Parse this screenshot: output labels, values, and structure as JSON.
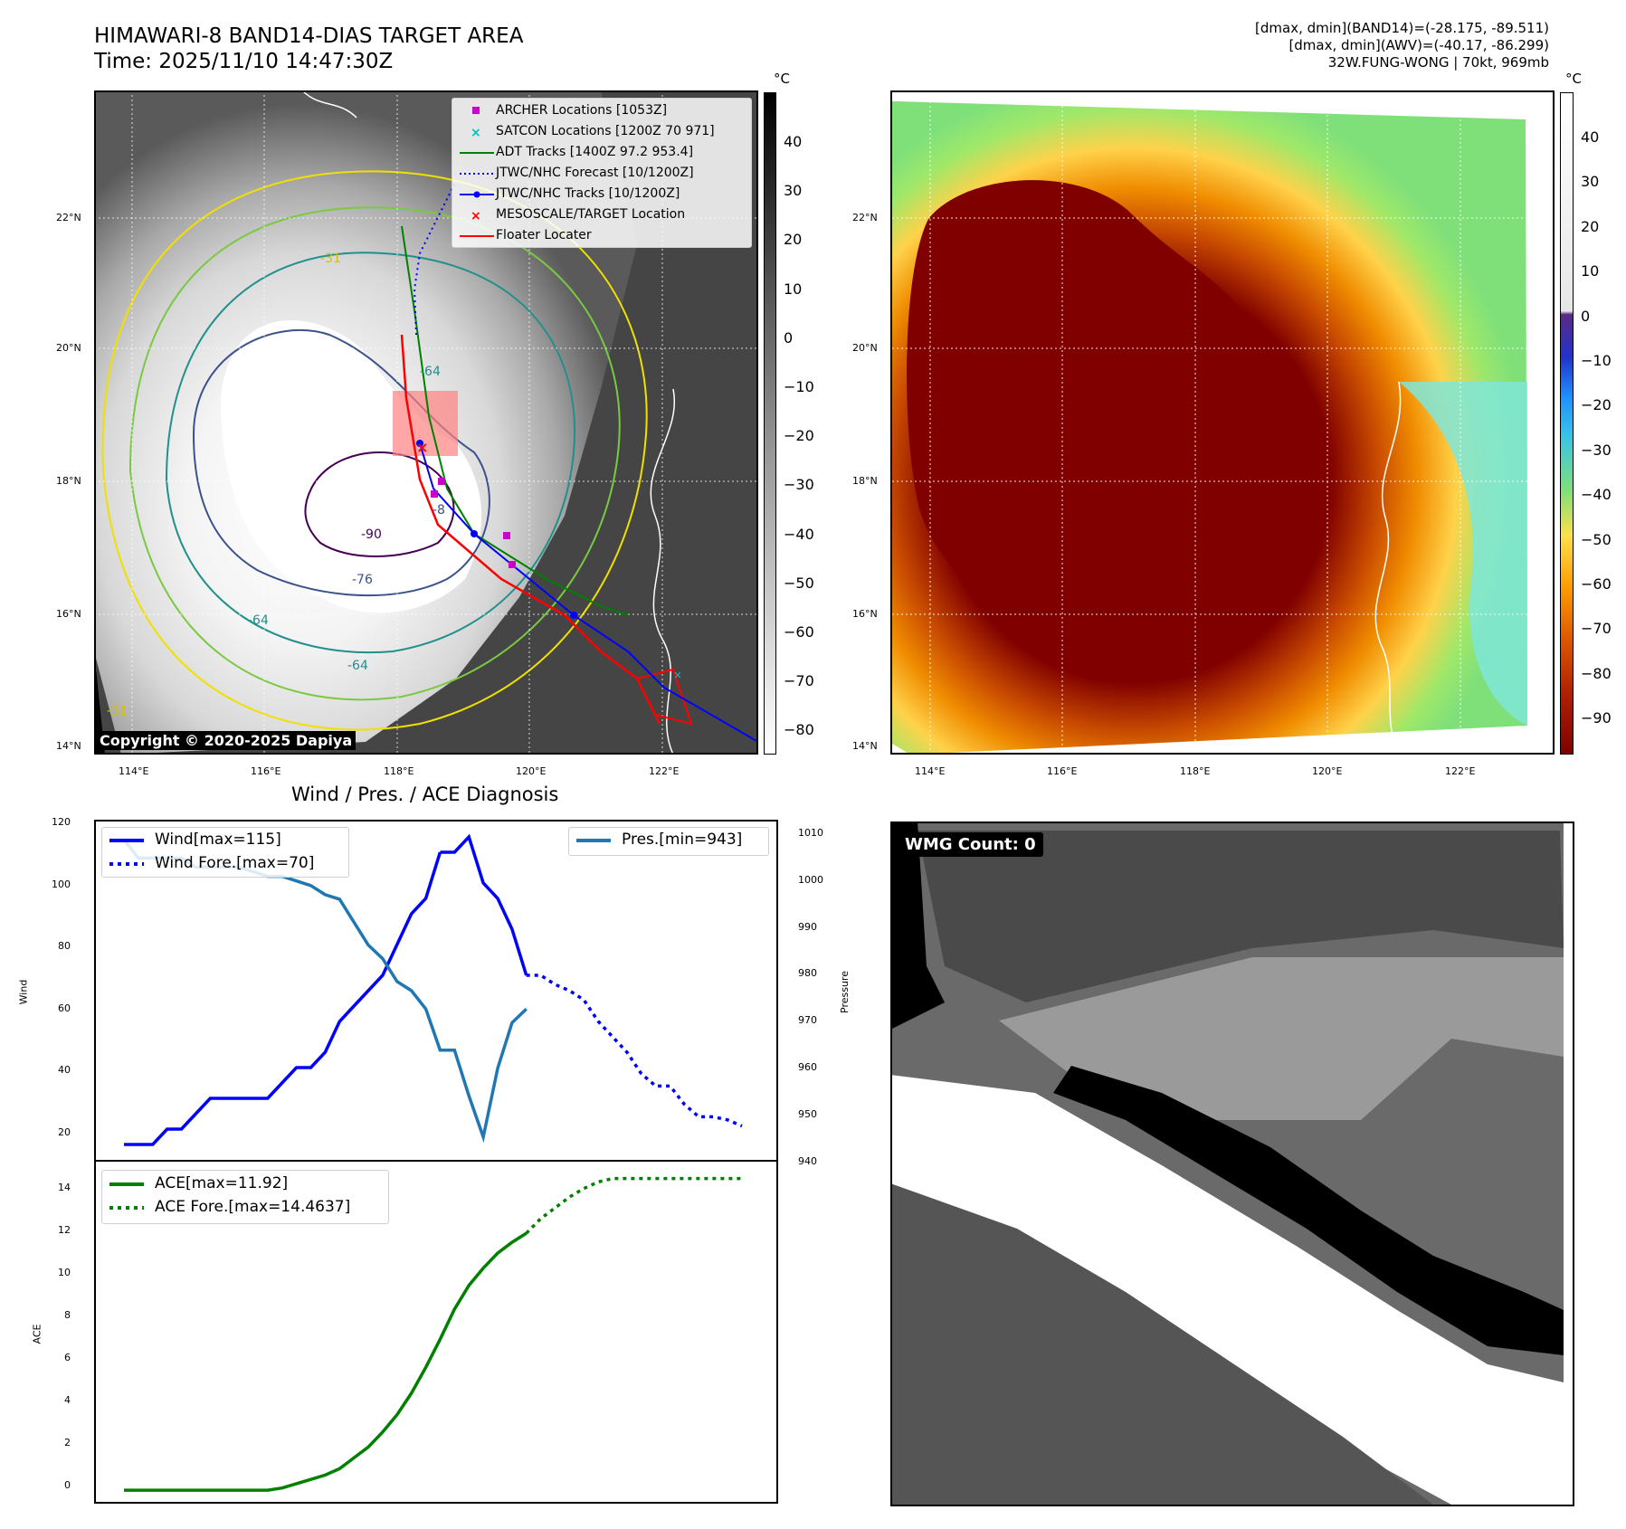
{
  "title": {
    "line1": "HIMAWARI-8 BAND14-DIAS TARGET AREA",
    "line2": "Time: 2025/11/10 14:47:30Z"
  },
  "info": {
    "line1": "[dmax, dmin](BAND14)=(-28.175, -89.511)",
    "line2": "[dmax, dmin](AWV)=(-40.17, -86.299)",
    "line3": "32W.FUNG-WONG | 70kt, 969mb"
  },
  "map": {
    "lat_ticks": [
      "22°N",
      "20°N",
      "18°N",
      "16°N",
      "14°N"
    ],
    "lon_ticks": [
      "114°E",
      "116°E",
      "118°E",
      "120°E",
      "122°E"
    ],
    "contour_labels": [
      "-90",
      "-76",
      "-64",
      "-64",
      "-31",
      "-31",
      "-64",
      "-8"
    ],
    "copyright": "Copyright © 2020-2025 Dapiya"
  },
  "legend_map": [
    {
      "label": "ARCHER Locations [1053Z]",
      "color": "#cc00cc",
      "marker": "square"
    },
    {
      "label": "SATCON Locations [1200Z 70 971]",
      "color": "#00bfbf",
      "marker": "x"
    },
    {
      "label": "ADT Tracks [1400Z 97.2 953.4]",
      "color": "#008000",
      "marker": "line"
    },
    {
      "label": "JTWC/NHC Forecast [10/1200Z]",
      "color": "#0000ff",
      "marker": "dotted"
    },
    {
      "label": "JTWC/NHC Tracks [10/1200Z]",
      "color": "#0000ff",
      "marker": "line-dot"
    },
    {
      "label": "MESOSCALE/TARGET Location",
      "color": "#ff0000",
      "marker": "x"
    },
    {
      "label": "Floater Locater",
      "color": "#ff0000",
      "marker": "line"
    }
  ],
  "colorbar_left": {
    "unit": "°C",
    "ticks": [
      "40",
      "30",
      "20",
      "10",
      "0",
      "−10",
      "−20",
      "−30",
      "−40",
      "−50",
      "−60",
      "−70",
      "−80"
    ]
  },
  "colorbar_right": {
    "unit": "°C",
    "ticks": [
      "40",
      "30",
      "20",
      "10",
      "0",
      "−10",
      "−20",
      "−30",
      "−40",
      "−50",
      "−60",
      "−70",
      "−80",
      "−90"
    ]
  },
  "diag": {
    "title": "Wind / Pres. / ACE Diagnosis",
    "wind_ylabel": "Wind",
    "pres_ylabel": "Pressure",
    "ace_ylabel": "ACE",
    "wind_ticks": [
      "120",
      "100",
      "80",
      "60",
      "40",
      "20"
    ],
    "pres_ticks": [
      "1010",
      "1000",
      "990",
      "980",
      "970",
      "960",
      "950",
      "940"
    ],
    "ace_ticks": [
      "14",
      "12",
      "10",
      "8",
      "6",
      "4",
      "2",
      "0"
    ]
  },
  "legend_wind": [
    {
      "label": "Wind[max=115]",
      "color": "#0000ff",
      "style": "solid"
    },
    {
      "label": "Wind Fore.[max=70]",
      "color": "#0000ff",
      "style": "dotted"
    }
  ],
  "legend_pres": [
    {
      "label": "Pres.[min=943]",
      "color": "#1f77b4",
      "style": "solid"
    }
  ],
  "legend_ace": [
    {
      "label": "ACE[max=11.92]",
      "color": "#008000",
      "style": "solid"
    },
    {
      "label": "ACE Fore.[max=14.4637]",
      "color": "#008000",
      "style": "dotted"
    }
  ],
  "wmg": {
    "label": "WMG Count: 0"
  },
  "chart_data": [
    {
      "type": "line",
      "title": "Wind / Pres. / ACE Diagnosis",
      "ylabel": "Wind",
      "ylim": [
        10,
        120
      ],
      "series": [
        {
          "name": "Wind[max=115]",
          "style": "solid",
          "color": "#0000ff",
          "x": [
            0,
            1,
            2,
            3,
            4,
            5,
            6,
            7,
            8,
            9,
            10,
            11,
            12,
            13,
            14,
            15,
            16,
            17,
            18,
            19,
            20,
            21,
            22
          ],
          "values": [
            15,
            15,
            15,
            20,
            20,
            25,
            30,
            30,
            30,
            30,
            30,
            35,
            40,
            40,
            45,
            55,
            60,
            65,
            70,
            80,
            90,
            95,
            110
          ]
        },
        {
          "name": "Wind[max=115]",
          "style": "solid",
          "color": "#0000ff",
          "x": [
            22,
            23,
            24,
            25,
            26,
            27,
            28
          ],
          "values": [
            110,
            110,
            115,
            100,
            95,
            85,
            70
          ]
        },
        {
          "name": "Wind Fore.[max=70]",
          "style": "dotted",
          "color": "#0000ff",
          "x": [
            28,
            29,
            30,
            31,
            32,
            33,
            34,
            35,
            36,
            37,
            38,
            39,
            40,
            41,
            42,
            43
          ],
          "values": [
            70,
            70,
            67,
            65,
            62,
            55,
            50,
            45,
            38,
            34,
            34,
            28,
            24,
            24,
            23,
            21
          ]
        }
      ]
    },
    {
      "type": "line",
      "ylabel": "Pressure",
      "ylim": [
        938,
        1012
      ],
      "series": [
        {
          "name": "Pres.[min=943]",
          "style": "solid",
          "color": "#1f77b4",
          "x": [
            0,
            1,
            2,
            3,
            4,
            5,
            6,
            7,
            8,
            9,
            10,
            11,
            12,
            13,
            14,
            15,
            16,
            17,
            18,
            19,
            20,
            21,
            22,
            23,
            24,
            25,
            26,
            27,
            28
          ],
          "values": [
            1008,
            1004,
            1004,
            1004,
            1004,
            1002,
            1002,
            1002,
            1002,
            1001,
            1000,
            1000,
            999,
            998,
            996,
            995,
            990,
            985,
            982,
            977,
            975,
            971,
            962,
            962,
            952,
            943,
            958,
            968,
            971
          ]
        }
      ]
    },
    {
      "type": "line",
      "ylabel": "ACE",
      "ylim": [
        -0.5,
        15.2
      ],
      "series": [
        {
          "name": "ACE[max=11.92]",
          "style": "solid",
          "color": "#008000",
          "x": [
            0,
            1,
            2,
            3,
            4,
            5,
            6,
            7,
            8,
            9,
            10,
            11,
            12,
            13,
            14,
            15,
            16,
            17,
            18,
            19,
            20,
            21,
            22,
            23,
            24,
            25,
            26,
            27,
            28
          ],
          "values": [
            0,
            0,
            0,
            0,
            0,
            0,
            0,
            0,
            0,
            0,
            0,
            0.1,
            0.3,
            0.5,
            0.7,
            1.0,
            1.5,
            2.0,
            2.7,
            3.5,
            4.5,
            5.7,
            7.0,
            8.4,
            9.5,
            10.3,
            11.0,
            11.5,
            11.92
          ]
        },
        {
          "name": "ACE Fore.[max=14.4637]",
          "style": "dotted",
          "color": "#008000",
          "x": [
            28,
            29,
            30,
            31,
            32,
            33,
            34,
            35,
            36,
            37,
            38,
            39,
            40,
            41,
            42,
            43
          ],
          "values": [
            11.92,
            12.6,
            13.1,
            13.6,
            14.0,
            14.3,
            14.46,
            14.46,
            14.46,
            14.46,
            14.46,
            14.46,
            14.46,
            14.46,
            14.46,
            14.46
          ]
        }
      ]
    }
  ]
}
